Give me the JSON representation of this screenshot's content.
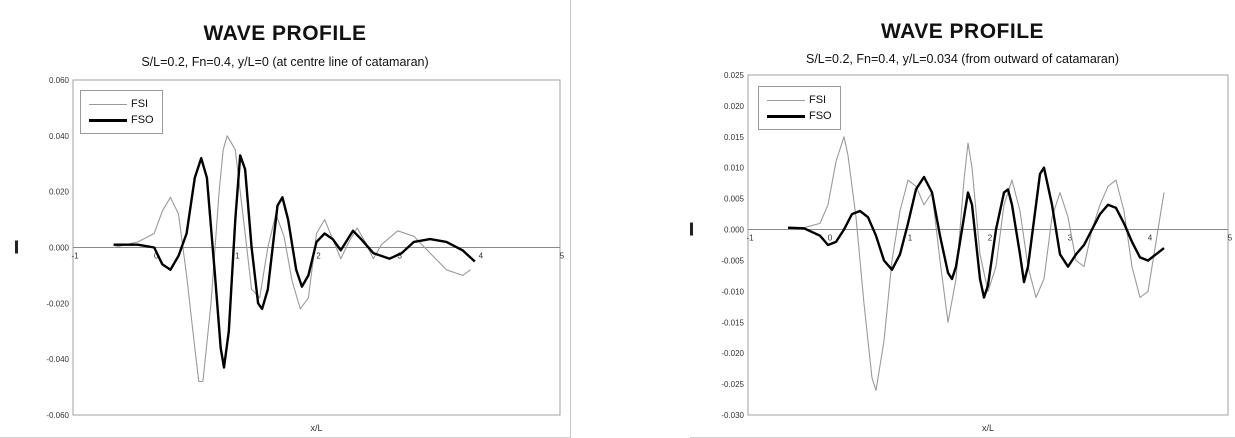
{
  "chart_data": [
    {
      "type": "line",
      "title": "WAVE PROFILE",
      "subtitle": "S/L=0.2, Fn=0.4, y/L=0 (at centre line of catamaran)",
      "xlabel": "x/L",
      "ylabel": "",
      "xlim": [
        -1,
        5
      ],
      "ylim": [
        -0.06,
        0.06
      ],
      "x_ticks": [
        "-1",
        "0",
        "1",
        "2",
        "3",
        "4",
        "5"
      ],
      "y_ticks": [
        "0.060",
        "0.040",
        "0.020",
        "0.000",
        "-0.020",
        "-0.040",
        "-0.060"
      ],
      "legend_position": "top-left",
      "series": [
        {
          "name": "FSI",
          "color": "#9a9a9a",
          "points": [
            [
              -0.5,
              0
            ],
            [
              -0.2,
              0.002
            ],
            [
              0,
              0.005
            ],
            [
              0.1,
              0.013
            ],
            [
              0.2,
              0.018
            ],
            [
              0.3,
              0.012
            ],
            [
              0.4,
              -0.01
            ],
            [
              0.5,
              -0.036
            ],
            [
              0.55,
              -0.048
            ],
            [
              0.6,
              -0.048
            ],
            [
              0.7,
              -0.02
            ],
            [
              0.8,
              0.02
            ],
            [
              0.85,
              0.035
            ],
            [
              0.9,
              0.04
            ],
            [
              1,
              0.035
            ],
            [
              1.1,
              0.01
            ],
            [
              1.2,
              -0.015
            ],
            [
              1.3,
              -0.018
            ],
            [
              1.4,
              0
            ],
            [
              1.5,
              0.012
            ],
            [
              1.6,
              0.004
            ],
            [
              1.7,
              -0.012
            ],
            [
              1.8,
              -0.022
            ],
            [
              1.9,
              -0.018
            ],
            [
              2.0,
              0.005
            ],
            [
              2.1,
              0.01
            ],
            [
              2.2,
              0.003
            ],
            [
              2.3,
              -0.004
            ],
            [
              2.4,
              0.002
            ],
            [
              2.5,
              0.007
            ],
            [
              2.6,
              0.002
            ],
            [
              2.7,
              -0.004
            ],
            [
              2.8,
              0.001
            ],
            [
              3.0,
              0.006
            ],
            [
              3.2,
              0.004
            ],
            [
              3.4,
              -0.002
            ],
            [
              3.6,
              -0.008
            ],
            [
              3.8,
              -0.01
            ],
            [
              3.9,
              -0.008
            ]
          ]
        },
        {
          "name": "FSO",
          "color": "#000000",
          "points": [
            [
              -0.5,
              0.001
            ],
            [
              -0.2,
              0.001
            ],
            [
              0,
              0
            ],
            [
              0.1,
              -0.006
            ],
            [
              0.2,
              -0.008
            ],
            [
              0.3,
              -0.003
            ],
            [
              0.4,
              0.005
            ],
            [
              0.5,
              0.025
            ],
            [
              0.58,
              0.032
            ],
            [
              0.65,
              0.025
            ],
            [
              0.75,
              -0.01
            ],
            [
              0.82,
              -0.036
            ],
            [
              0.86,
              -0.043
            ],
            [
              0.92,
              -0.03
            ],
            [
              1.0,
              0.01
            ],
            [
              1.06,
              0.033
            ],
            [
              1.12,
              0.028
            ],
            [
              1.2,
              0
            ],
            [
              1.28,
              -0.02
            ],
            [
              1.33,
              -0.022
            ],
            [
              1.4,
              -0.015
            ],
            [
              1.52,
              0.015
            ],
            [
              1.58,
              0.018
            ],
            [
              1.65,
              0.01
            ],
            [
              1.75,
              -0.008
            ],
            [
              1.82,
              -0.014
            ],
            [
              1.9,
              -0.01
            ],
            [
              2.0,
              0.002
            ],
            [
              2.1,
              0.005
            ],
            [
              2.2,
              0.003
            ],
            [
              2.3,
              -0.001
            ],
            [
              2.45,
              0.006
            ],
            [
              2.55,
              0.003
            ],
            [
              2.7,
              -0.002
            ],
            [
              2.9,
              -0.004
            ],
            [
              3.05,
              -0.002
            ],
            [
              3.2,
              0.002
            ],
            [
              3.4,
              0.003
            ],
            [
              3.6,
              0.002
            ],
            [
              3.8,
              -0.001
            ],
            [
              3.95,
              -0.005
            ]
          ]
        }
      ]
    },
    {
      "type": "line",
      "title": "WAVE PROFILE",
      "subtitle": "S/L=0.2, Fn=0.4, y/L=0.034 (from outward of catamaran)",
      "xlabel": "x/L",
      "ylabel": "",
      "xlim": [
        -1,
        5
      ],
      "ylim": [
        -0.03,
        0.025
      ],
      "x_ticks": [
        "-1",
        "0",
        "1",
        "2",
        "3",
        "4",
        "5"
      ],
      "y_ticks": [
        "0.025",
        "0.020",
        "0.015",
        "0.010",
        "0.005",
        "0.000",
        "-0.005",
        "-0.010",
        "-0.015",
        "-0.020",
        "-0.025",
        "-0.030"
      ],
      "legend_position": "top-left",
      "series": [
        {
          "name": "FSI",
          "color": "#9a9a9a",
          "points": [
            [
              -0.5,
              0.0002
            ],
            [
              -0.3,
              0.0003
            ],
            [
              -0.1,
              0.001
            ],
            [
              0,
              0.004
            ],
            [
              0.1,
              0.011
            ],
            [
              0.2,
              0.015
            ],
            [
              0.25,
              0.012
            ],
            [
              0.35,
              0.002
            ],
            [
              0.45,
              -0.012
            ],
            [
              0.55,
              -0.024
            ],
            [
              0.6,
              -0.026
            ],
            [
              0.7,
              -0.018
            ],
            [
              0.8,
              -0.005
            ],
            [
              0.9,
              0.003
            ],
            [
              1.0,
              0.008
            ],
            [
              1.1,
              0.007
            ],
            [
              1.2,
              0.004
            ],
            [
              1.3,
              0.006
            ],
            [
              1.4,
              -0.005
            ],
            [
              1.5,
              -0.015
            ],
            [
              1.6,
              -0.008
            ],
            [
              1.7,
              0.008
            ],
            [
              1.75,
              0.014
            ],
            [
              1.8,
              0.01
            ],
            [
              1.9,
              -0.004
            ],
            [
              2.0,
              -0.01
            ],
            [
              2.1,
              -0.006
            ],
            [
              2.2,
              0.004
            ],
            [
              2.3,
              0.008
            ],
            [
              2.4,
              0.003
            ],
            [
              2.5,
              -0.006
            ],
            [
              2.6,
              -0.011
            ],
            [
              2.7,
              -0.008
            ],
            [
              2.8,
              0.002
            ],
            [
              2.9,
              0.006
            ],
            [
              3.0,
              0.002
            ],
            [
              3.1,
              -0.005
            ],
            [
              3.2,
              -0.006
            ],
            [
              3.3,
              0
            ],
            [
              3.4,
              0.004
            ],
            [
              3.5,
              0.007
            ],
            [
              3.6,
              0.008
            ],
            [
              3.7,
              0.003
            ],
            [
              3.8,
              -0.006
            ],
            [
              3.9,
              -0.011
            ],
            [
              4.0,
              -0.01
            ],
            [
              4.1,
              -0.002
            ],
            [
              4.2,
              0.006
            ]
          ]
        },
        {
          "name": "FSO",
          "color": "#000000",
          "points": [
            [
              -0.5,
              0.0003
            ],
            [
              -0.3,
              0.0002
            ],
            [
              -0.1,
              -0.001
            ],
            [
              0,
              -0.0025
            ],
            [
              0.1,
              -0.002
            ],
            [
              0.2,
              0
            ],
            [
              0.3,
              0.0025
            ],
            [
              0.4,
              0.003
            ],
            [
              0.5,
              0.002
            ],
            [
              0.6,
              -0.001
            ],
            [
              0.7,
              -0.005
            ],
            [
              0.8,
              -0.0065
            ],
            [
              0.9,
              -0.004
            ],
            [
              1.0,
              0.001
            ],
            [
              1.1,
              0.0065
            ],
            [
              1.2,
              0.0085
            ],
            [
              1.3,
              0.006
            ],
            [
              1.4,
              -0.001
            ],
            [
              1.5,
              -0.007
            ],
            [
              1.55,
              -0.008
            ],
            [
              1.6,
              -0.006
            ],
            [
              1.7,
              0.002
            ],
            [
              1.75,
              0.006
            ],
            [
              1.8,
              0.004
            ],
            [
              1.9,
              -0.008
            ],
            [
              1.95,
              -0.011
            ],
            [
              2.0,
              -0.009
            ],
            [
              2.1,
              0
            ],
            [
              2.2,
              0.006
            ],
            [
              2.25,
              0.0065
            ],
            [
              2.3,
              0.004
            ],
            [
              2.4,
              -0.004
            ],
            [
              2.45,
              -0.0085
            ],
            [
              2.5,
              -0.006
            ],
            [
              2.6,
              0.004
            ],
            [
              2.65,
              0.009
            ],
            [
              2.7,
              0.01
            ],
            [
              2.8,
              0.004
            ],
            [
              2.9,
              -0.004
            ],
            [
              3.0,
              -0.006
            ],
            [
              3.1,
              -0.004
            ],
            [
              3.2,
              -0.0025
            ],
            [
              3.3,
              0
            ],
            [
              3.4,
              0.0025
            ],
            [
              3.5,
              0.004
            ],
            [
              3.6,
              0.0035
            ],
            [
              3.7,
              0.001
            ],
            [
              3.8,
              -0.002
            ],
            [
              3.9,
              -0.0045
            ],
            [
              4.0,
              -0.005
            ],
            [
              4.1,
              -0.004
            ],
            [
              4.2,
              -0.003
            ]
          ]
        }
      ]
    }
  ]
}
